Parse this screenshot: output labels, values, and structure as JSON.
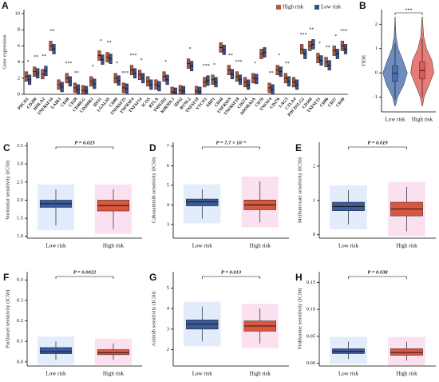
{
  "chart_data": [
    {
      "type": "box",
      "label": "A",
      "ylabel": "Gene expression",
      "ylim": [
        0,
        10.5
      ],
      "yticks": [
        0,
        2,
        4,
        6,
        8,
        10
      ],
      "legend": "top-right",
      "categories": [
        "PDCD1",
        "CD200",
        "HHLA2",
        "TNFRSF14",
        "LAIR1",
        "CD48",
        "CD28",
        "CD40LG",
        "CD200R1",
        "IDO1",
        "LGALS9",
        "CD80",
        "TNFRSF25",
        "TNFRSF4",
        "TNFSF14",
        "ICOS",
        "BTLA",
        "TMIGD2",
        "KIR3DL1",
        "IDO2",
        "BTNL2",
        "TNFSF18",
        "VTCN1",
        "NRP1",
        "CD44",
        "TNFRSF9",
        "TNFRSF18",
        "CD274",
        "ADORA2A",
        "CD70",
        "TNFSF4",
        "CD276",
        "LAG3",
        "CTLA4",
        "PDCD1LG2",
        "CD160",
        "TNFSF15",
        "CD86",
        "CD27",
        "CD40"
      ],
      "annotations": [
        "*",
        "**",
        "**",
        "**",
        null,
        "***",
        "**",
        null,
        "*",
        "*",
        "**",
        "*",
        "***",
        "***",
        "*",
        null,
        null,
        "*",
        null,
        null,
        "*",
        null,
        "***",
        "*",
        null,
        "**",
        "***",
        null,
        "*",
        null,
        "**",
        "*",
        "**",
        null,
        "***",
        "**",
        "*",
        "**",
        "*",
        "***"
      ],
      "series": [
        {
          "name": "High risk",
          "color": "#b4583f",
          "q1": [
            1.6,
            2.2,
            1.9,
            5.4,
            0.6,
            1.4,
            0.2,
            0,
            1.0,
            4.2,
            4.0,
            1.4,
            0.2,
            2.4,
            1.8,
            1.0,
            0.6,
            1.6,
            0,
            0,
            3.2,
            0,
            0.9,
            1.2,
            5.2,
            2.4,
            1.6,
            0.9,
            1.4,
            4.4,
            0.2,
            2.4,
            1.4,
            0.9,
            5.0,
            5.4,
            3.9,
            3.4,
            4.8,
            5.4
          ],
          "median": [
            2.2,
            2.8,
            2.5,
            6.0,
            1.2,
            2.0,
            0.8,
            0.5,
            1.6,
            4.8,
            4.6,
            2.0,
            0.8,
            3.0,
            2.4,
            1.6,
            1.2,
            2.2,
            0.3,
            0.5,
            3.8,
            0.4,
            1.5,
            1.8,
            5.8,
            3.0,
            2.2,
            1.5,
            2.0,
            5.0,
            0.8,
            3.0,
            2.0,
            1.5,
            5.6,
            6.0,
            4.5,
            4.0,
            5.4,
            6.0
          ],
          "q3": [
            2.8,
            3.4,
            3.1,
            6.6,
            1.8,
            2.6,
            1.4,
            1.1,
            2.2,
            5.4,
            5.2,
            2.6,
            1.4,
            3.6,
            3.0,
            2.2,
            1.8,
            2.8,
            0.9,
            1.1,
            4.4,
            1.0,
            2.1,
            2.4,
            6.4,
            3.6,
            2.8,
            2.1,
            2.6,
            5.6,
            1.4,
            3.6,
            2.6,
            2.1,
            6.2,
            6.6,
            5.1,
            4.6,
            6.0,
            6.6
          ]
        },
        {
          "name": "Low risk",
          "color": "#3a4f8c",
          "q1": [
            1.2,
            2.0,
            2.3,
            5.0,
            0.3,
            1.0,
            0,
            0,
            0.7,
            3.7,
            3.8,
            1.1,
            0.1,
            2.0,
            1.4,
            0.6,
            0.4,
            1.2,
            0,
            0,
            2.9,
            0,
            1.1,
            0.9,
            4.9,
            1.9,
            1.2,
            0.6,
            1.3,
            4.6,
            0,
            2.2,
            1.0,
            0.6,
            4.4,
            5.6,
            3.6,
            3.0,
            4.4,
            5.0
          ],
          "median": [
            1.8,
            2.6,
            2.9,
            5.6,
            0.9,
            1.6,
            0.6,
            0.4,
            1.3,
            4.3,
            4.4,
            1.7,
            0.7,
            2.6,
            2.0,
            1.2,
            1.0,
            1.8,
            0.2,
            0.4,
            3.5,
            0.3,
            1.7,
            1.5,
            5.5,
            2.5,
            1.8,
            1.2,
            1.9,
            5.2,
            0.6,
            2.8,
            1.6,
            1.2,
            5.0,
            6.2,
            4.2,
            3.6,
            5.0,
            5.6
          ],
          "q3": [
            2.4,
            3.2,
            3.5,
            6.2,
            1.5,
            2.2,
            1.2,
            1.0,
            1.9,
            4.9,
            5.0,
            2.3,
            1.3,
            3.2,
            2.6,
            1.8,
            1.6,
            2.4,
            0.8,
            1.0,
            4.1,
            0.9,
            2.3,
            2.1,
            6.1,
            3.1,
            2.4,
            1.8,
            2.5,
            5.8,
            1.2,
            3.4,
            2.2,
            1.8,
            5.6,
            6.8,
            4.8,
            4.2,
            5.6,
            6.2
          ]
        }
      ]
    },
    {
      "type": "violin",
      "label": "B",
      "ylabel": "TIDE",
      "ylim": [
        -1.6,
        2.6
      ],
      "yticks": [
        -1,
        0,
        1,
        2
      ],
      "annotation": "***",
      "categories": [
        "Low risk",
        "High risk"
      ],
      "colors": [
        "#4a6fb0",
        "#e05a55"
      ],
      "q1": [
        -0.35,
        -0.25
      ],
      "median": [
        -0.02,
        0.1
      ],
      "q3": [
        0.3,
        0.45
      ],
      "whisker_low": [
        -1.1,
        -1.0
      ],
      "whisker_high": [
        1.2,
        1.4
      ],
      "density_y": [
        -1.35,
        -1,
        -0.5,
        0,
        0.5,
        1,
        1.5,
        2,
        2.3
      ],
      "density": [
        [
          0.03,
          0.2,
          0.7,
          1,
          0.65,
          0.25,
          0.08,
          0.03,
          0.01
        ],
        [
          0.03,
          0.15,
          0.55,
          0.95,
          0.8,
          0.35,
          0.12,
          0.05,
          0.02
        ]
      ]
    },
    {
      "type": "box",
      "label": "C",
      "ylabel": "Vorinostat sensitivity (IC50)",
      "annotation": "P = 0.023",
      "ylim": [
        0.95,
        3.6
      ],
      "yticks": [
        {
          "value": 1.0,
          "label": "1.0"
        },
        1.5,
        {
          "value": 2.0,
          "label": "2.0"
        },
        2.5,
        {
          "value": 3.0,
          "label": "3.0"
        },
        3.5
      ],
      "categories": [
        "Low risk",
        "High risk"
      ],
      "colors": [
        "#3a5a9c",
        "#d8573f"
      ],
      "q1": [
        1.8,
        1.7
      ],
      "median": [
        1.9,
        1.85
      ],
      "q3": [
        2.0,
        2.0
      ],
      "whisker_low": [
        1.3,
        1.2
      ],
      "whisker_high": [
        2.3,
        2.3
      ]
    },
    {
      "type": "box",
      "label": "D",
      "ylabel": "Cabozantinib sensitivity (IC50)",
      "annotation": "P = 7.7 × 10⁻⁵",
      "ylim": [
        2.3,
        7.2
      ],
      "yticks": [
        3,
        4,
        5,
        6,
        7
      ],
      "categories": [
        "Low risk",
        "High risk"
      ],
      "colors": [
        "#3a5a9c",
        "#d8573f"
      ],
      "q1": [
        3.95,
        3.75
      ],
      "median": [
        4.15,
        4.0
      ],
      "q3": [
        4.3,
        4.25
      ],
      "whisker_low": [
        3.3,
        3.1
      ],
      "whisker_high": [
        4.8,
        5.2
      ]
    },
    {
      "type": "box",
      "label": "E",
      "ylabel": "Methotrexate sensitivity (IC50)",
      "annotation": "P = 0.019",
      "ylim": [
        -0.1,
        2.7
      ],
      "yticks": [
        0,
        1,
        2
      ],
      "categories": [
        "Low risk",
        "High risk"
      ],
      "colors": [
        "#3a5a9c",
        "#d8573f"
      ],
      "q1": [
        0.7,
        0.55
      ],
      "median": [
        0.82,
        0.75
      ],
      "q3": [
        0.95,
        0.95
      ],
      "whisker_low": [
        0.3,
        0.1
      ],
      "whisker_high": [
        1.3,
        1.4
      ]
    },
    {
      "type": "box",
      "label": "F",
      "ylabel": "Paclitaxel sensitivity (IC50)",
      "annotation": "P = 0.0022",
      "ylim": [
        -0.02,
        0.44
      ],
      "yticks": [
        {
          "value": 0.0,
          "label": "0.0"
        },
        0.1,
        0.2,
        0.3,
        0.4
      ],
      "categories": [
        "Low risk",
        "High risk"
      ],
      "colors": [
        "#3a5a9c",
        "#d8573f"
      ],
      "q1": [
        0.04,
        0.035
      ],
      "median": [
        0.05,
        0.045
      ],
      "q3": [
        0.07,
        0.06
      ],
      "whisker_low": [
        0.01,
        0.01
      ],
      "whisker_high": [
        0.1,
        0.09
      ]
    },
    {
      "type": "box",
      "label": "G",
      "ylabel": "Axitinib sensitivity (IC50)",
      "annotation": "P = 0.013",
      "ylim": [
        1.2,
        5.8
      ],
      "yticks": [
        2,
        3,
        4,
        5
      ],
      "categories": [
        "Low risk",
        "High risk"
      ],
      "colors": [
        "#3a5a9c",
        "#d8573f"
      ],
      "q1": [
        3.0,
        2.9
      ],
      "median": [
        3.25,
        3.15
      ],
      "q3": [
        3.45,
        3.4
      ],
      "whisker_low": [
        2.4,
        2.3
      ],
      "whisker_high": [
        4.1,
        4.0
      ]
    },
    {
      "type": "box",
      "label": "H",
      "ylabel": "Vinblastine sensitivity (IC50)",
      "annotation": "P = 0.038",
      "ylim": [
        -0.005,
        0.17
      ],
      "yticks": [
        {
          "value": 0.0,
          "label": "0.00"
        },
        0.05,
        {
          "value": 0.1,
          "label": "0.10"
        },
        0.15
      ],
      "categories": [
        "Low risk",
        "High risk"
      ],
      "colors": [
        "#3a5a9c",
        "#d8573f"
      ],
      "q1": [
        0.018,
        0.015
      ],
      "median": [
        0.022,
        0.02
      ],
      "q3": [
        0.027,
        0.027
      ],
      "whisker_low": [
        0.008,
        0.005
      ],
      "whisker_high": [
        0.04,
        0.04
      ]
    }
  ]
}
